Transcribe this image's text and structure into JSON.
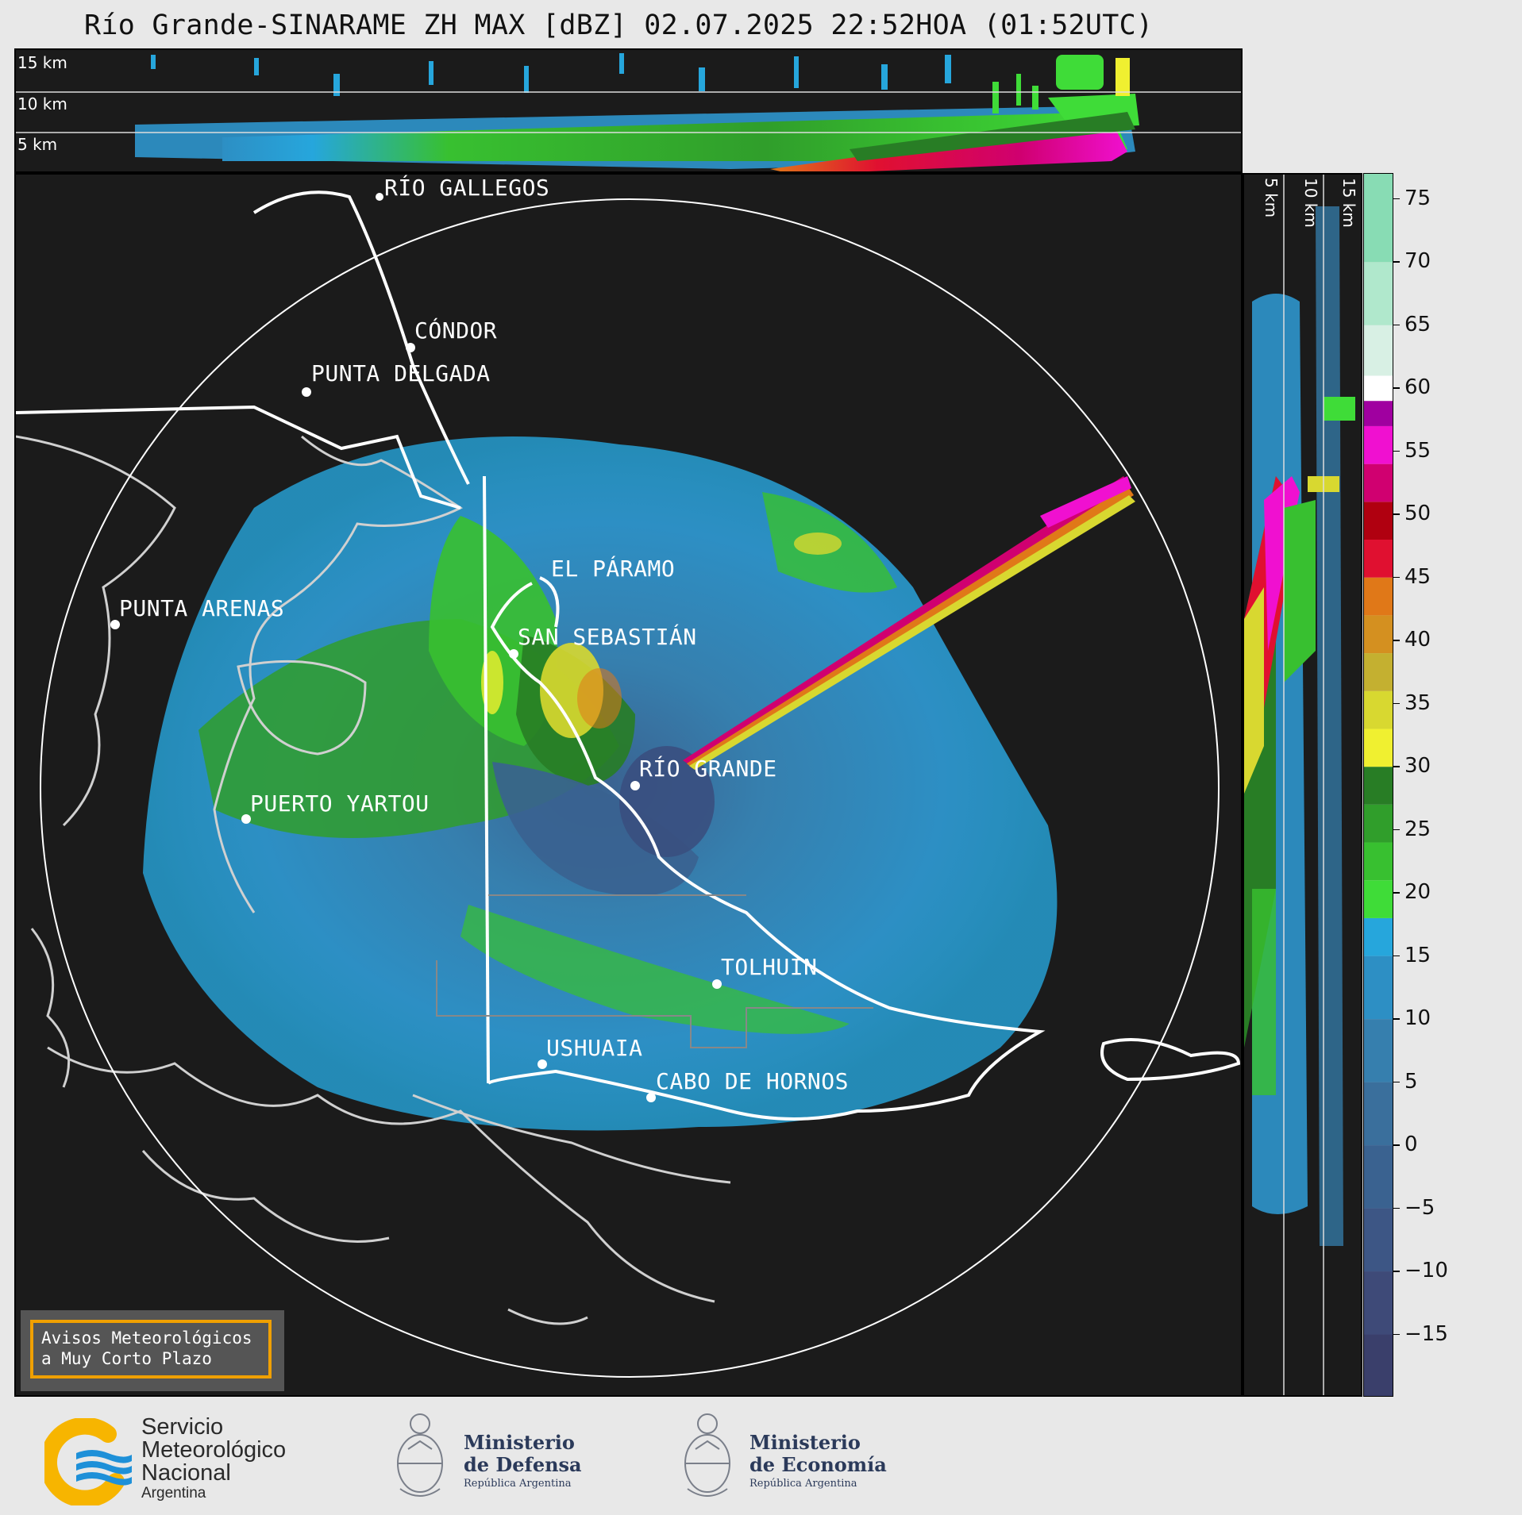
{
  "title": "Río Grande-SINARAME ZH MAX [dBZ] 02.07.2025 22:52HOA (01:52UTC)",
  "top_panel": {
    "heights": [
      "15 km",
      "10 km",
      "5 km"
    ]
  },
  "side_panel": {
    "heights": [
      "5 km",
      "10 km",
      "15 km"
    ]
  },
  "cities": [
    {
      "name": "RÍO GALLEGOS"
    },
    {
      "name": "CÓNDOR"
    },
    {
      "name": "PUNTA DELGADA"
    },
    {
      "name": "EL PÁRAMO"
    },
    {
      "name": "PUNTA ARENAS"
    },
    {
      "name": "SAN SEBASTIÁN"
    },
    {
      "name": "RÍO GRANDE"
    },
    {
      "name": "PUERTO YARTOU"
    },
    {
      "name": "TOLHUIN"
    },
    {
      "name": "USHUAIA"
    },
    {
      "name": "CABO DE HORNOS"
    }
  ],
  "notice": {
    "line1": "Avisos Meteorológicos",
    "line2": "a Muy Corto Plazo"
  },
  "colorbar": {
    "unit": "dBZ",
    "range": [
      -20,
      77
    ],
    "ticks": [
      "75",
      "70",
      "65",
      "60",
      "55",
      "50",
      "45",
      "40",
      "35",
      "30",
      "25",
      "20",
      "15",
      "10",
      "5",
      "0",
      "−5",
      "−10",
      "−15"
    ],
    "tick_values": [
      75,
      70,
      65,
      60,
      55,
      50,
      45,
      40,
      35,
      30,
      25,
      20,
      15,
      10,
      5,
      0,
      -5,
      -10,
      -15
    ],
    "bands": [
      {
        "from": -20,
        "to": -15,
        "color": "#3a3f6b"
      },
      {
        "from": -15,
        "to": -10,
        "color": "#3e4a78"
      },
      {
        "from": -10,
        "to": -5,
        "color": "#3d5685"
      },
      {
        "from": -5,
        "to": 0,
        "color": "#3a6290"
      },
      {
        "from": 0,
        "to": 5,
        "color": "#3a6f9c"
      },
      {
        "from": 5,
        "to": 10,
        "color": "#367fae"
      },
      {
        "from": 10,
        "to": 15,
        "color": "#2d8fc4"
      },
      {
        "from": 15,
        "to": 18,
        "color": "#26a6dc"
      },
      {
        "from": 18,
        "to": 21,
        "color": "#3fdc38"
      },
      {
        "from": 21,
        "to": 24,
        "color": "#38c030"
      },
      {
        "from": 24,
        "to": 27,
        "color": "#309e2b"
      },
      {
        "from": 27,
        "to": 30,
        "color": "#287d25"
      },
      {
        "from": 30,
        "to": 33,
        "color": "#f0f030"
      },
      {
        "from": 33,
        "to": 36,
        "color": "#d8d830"
      },
      {
        "from": 36,
        "to": 39,
        "color": "#c4b030"
      },
      {
        "from": 39,
        "to": 42,
        "color": "#d49020"
      },
      {
        "from": 42,
        "to": 45,
        "color": "#e07818"
      },
      {
        "from": 45,
        "to": 48,
        "color": "#e01030"
      },
      {
        "from": 48,
        "to": 51,
        "color": "#b00010"
      },
      {
        "from": 51,
        "to": 54,
        "color": "#d00070"
      },
      {
        "from": 54,
        "to": 57,
        "color": "#f010d0"
      },
      {
        "from": 57,
        "to": 59,
        "color": "#a000a0"
      },
      {
        "from": 59,
        "to": 61,
        "color": "#ffffff"
      },
      {
        "from": 61,
        "to": 65,
        "color": "#d8f0e4"
      },
      {
        "from": 65,
        "to": 70,
        "color": "#b0e8cc"
      },
      {
        "from": 70,
        "to": 77,
        "color": "#88dcb4"
      }
    ]
  },
  "footer": {
    "smn": {
      "l1": "Servicio",
      "l2": "Meteorológico",
      "l3": "Nacional",
      "l4": "Argentina"
    },
    "defensa": {
      "l1": "Ministerio",
      "l2": "de Defensa",
      "l3": "República Argentina"
    },
    "economia": {
      "l1": "Ministerio",
      "l2": "de Economía",
      "l3": "República Argentina"
    }
  },
  "colors": {
    "panel_bg": "#1b1b1b",
    "notice_border": "#f0a000",
    "smn_blue": "#1e90d8",
    "smn_yellow": "#f7b500",
    "ministry_text": "#2b3a5a"
  }
}
